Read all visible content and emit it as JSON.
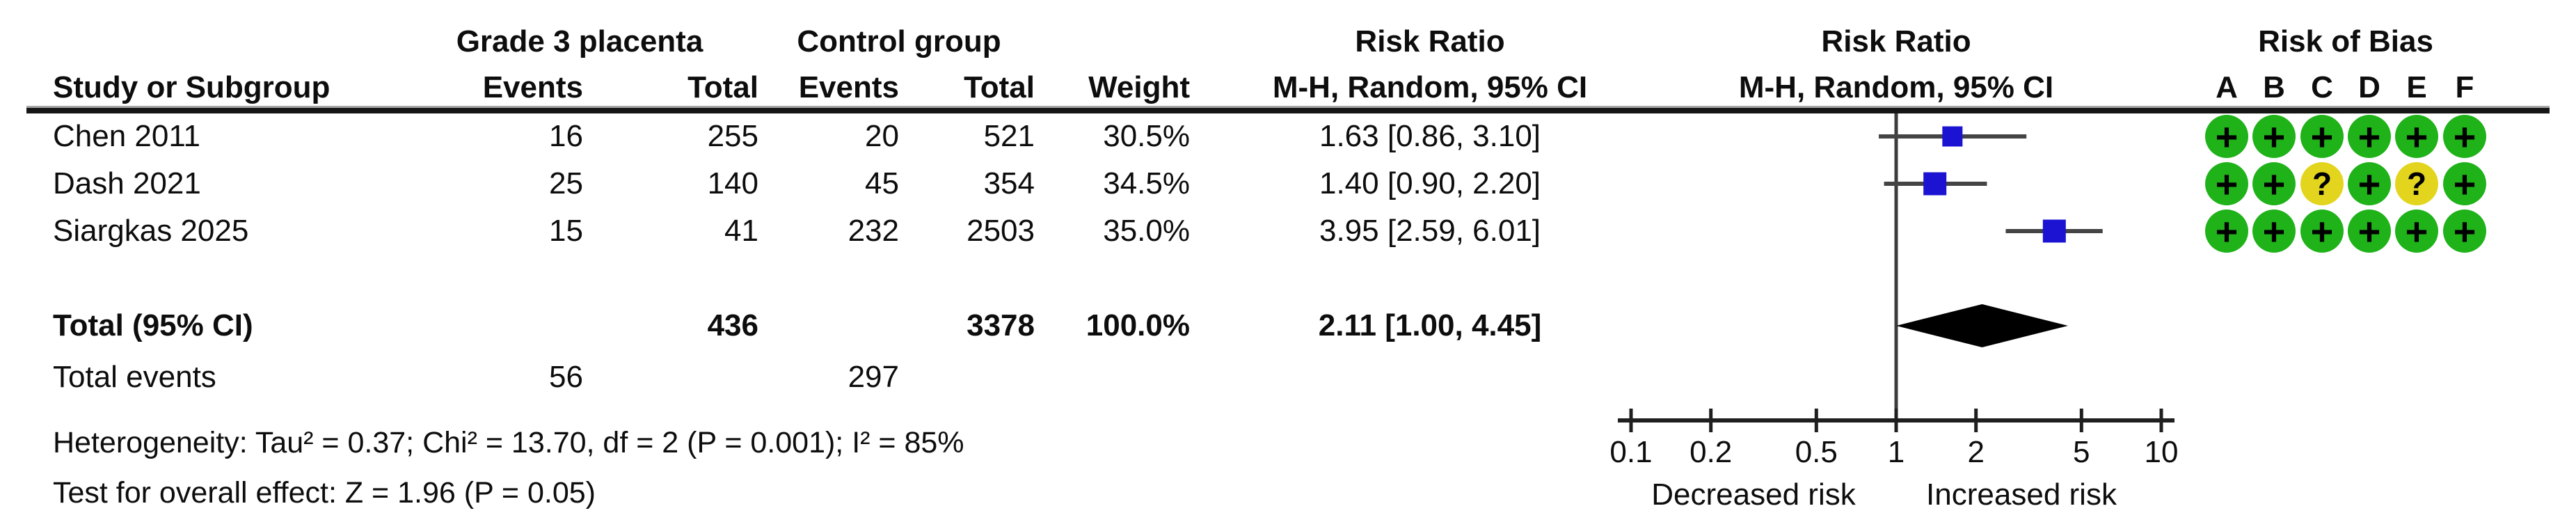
{
  "table": {
    "study_col_header": "Study or Subgroup",
    "group1_header": "Grade 3 placenta",
    "group2_header": "Control group",
    "events_header": "Events",
    "total_header": "Total",
    "weight_header": "Weight",
    "rr_header_line1": "Risk Ratio",
    "rr_header_line2": "M-H, Random, 95% CI",
    "rob_header": "Risk of Bias",
    "rob_domains": [
      "A",
      "B",
      "C",
      "D",
      "E",
      "F"
    ],
    "rows": [
      {
        "study": "Chen 2011",
        "g3_events": "16",
        "g3_total": "255",
        "c_events": "20",
        "c_total": "521",
        "weight": "30.5%",
        "rr_ci": "1.63 [0.86, 3.10]"
      },
      {
        "study": "Dash 2021",
        "g3_events": "25",
        "g3_total": "140",
        "c_events": "45",
        "c_total": "354",
        "weight": "34.5%",
        "rr_ci": "1.40 [0.90, 2.20]"
      },
      {
        "study": "Siargkas 2025",
        "g3_events": "15",
        "g3_total": "41",
        "c_events": "232",
        "c_total": "2503",
        "weight": "35.0%",
        "rr_ci": "3.95 [2.59, 6.01]"
      }
    ],
    "total_row": {
      "label": "Total (95% CI)",
      "g3_total": "436",
      "c_total": "3378",
      "weight": "100.0%",
      "rr_ci": "2.11 [1.00, 4.45]"
    },
    "total_events_row": {
      "label": "Total events",
      "g3_events": "56",
      "c_events": "297"
    },
    "heterogeneity": "Heterogeneity: Tau² = 0.37; Chi² = 13.70, df = 2 (P = 0.001); I² = 85%",
    "overall_effect": "Test for overall effect: Z = 1.96 (P = 0.05)"
  },
  "chart_data": {
    "type": "scatter",
    "subtype": "forest-plot",
    "effect_measure": "Risk Ratio (M-H, Random, 95% CI)",
    "scale": "log10",
    "xlim": [
      0.1,
      10
    ],
    "axis_ticks": [
      0.1,
      0.2,
      0.5,
      1,
      2,
      5,
      10
    ],
    "null_value": 1,
    "left_label": "Decreased risk",
    "right_label": "Increased risk",
    "studies": [
      {
        "name": "Chen 2011",
        "rr": 1.63,
        "ci_low": 0.86,
        "ci_high": 3.1,
        "weight_pct": 30.5,
        "rob": [
          "+",
          "+",
          "+",
          "+",
          "+",
          "+"
        ]
      },
      {
        "name": "Dash 2021",
        "rr": 1.4,
        "ci_low": 0.9,
        "ci_high": 2.2,
        "weight_pct": 34.5,
        "rob": [
          "+",
          "+",
          "?",
          "+",
          "?",
          "+"
        ]
      },
      {
        "name": "Siargkas 2025",
        "rr": 3.95,
        "ci_low": 2.59,
        "ci_high": 6.01,
        "weight_pct": 35.0,
        "rob": [
          "+",
          "+",
          "+",
          "+",
          "+",
          "+"
        ]
      }
    ],
    "total": {
      "rr": 2.11,
      "ci_low": 1.0,
      "ci_high": 4.45
    }
  },
  "colors": {
    "square_blue": "#1c13d2",
    "diamond_black": "#000000",
    "ci_line": "#444444",
    "axis": "#1f1f1f",
    "null_line": "#3c3c3c",
    "rob_low_green": "#1fb219",
    "rob_unclear_yellow": "#e3d51d"
  }
}
